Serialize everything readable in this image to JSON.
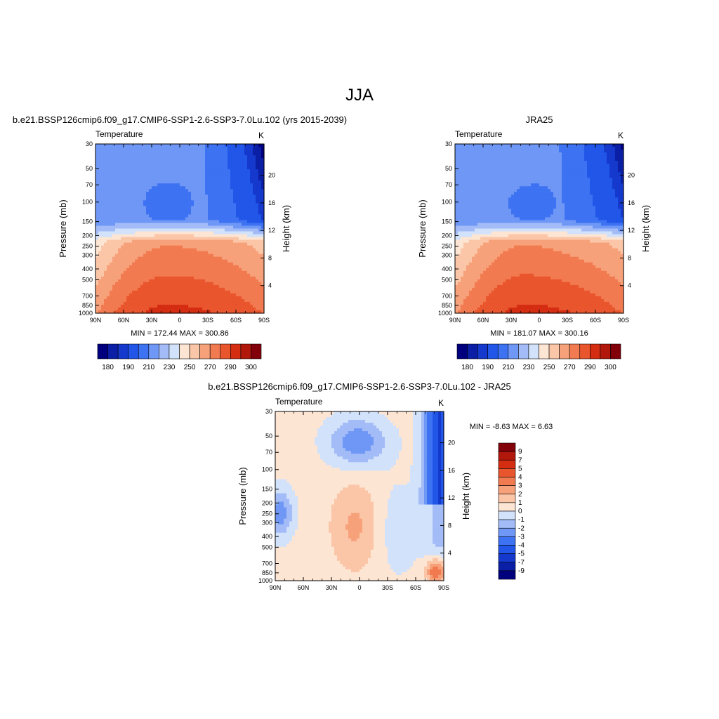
{
  "title": "JJA",
  "colors": {
    "ramp": [
      "#00007f",
      "#0b1fa6",
      "#1439cc",
      "#2156e8",
      "#3d72f2",
      "#6f97f5",
      "#a3bcf7",
      "#d2e2fb",
      "#fde5d3",
      "#fbc6a7",
      "#f7a17a",
      "#f27a50",
      "#e9552d",
      "#d42d12",
      "#b2170c",
      "#82000a"
    ]
  },
  "panels": [
    {
      "title": "b.e21.BSSP126cmip6.f09_g17.CMIP6-SSP1-2.6-SSP3-7.0Lu.102 (yrs 2015-2039)",
      "variable": "Temperature",
      "units": "K",
      "stats": "MIN = 172.44  MAX = 300.86"
    },
    {
      "title": "JRA25",
      "variable": "Temperature",
      "units": "K",
      "stats": "MIN = 181.07  MAX = 300.16"
    },
    {
      "title": "b.e21.BSSP126cmip6.f09_g17.CMIP6-SSP1-2.6-SSP3-7.0Lu.102 - JRA25",
      "variable": "Temperature",
      "units": "K",
      "stats": "MIN =  -8.63  MAX =   6.63"
    }
  ],
  "chart_data": [
    {
      "type": "heatmap",
      "title": "b.e21.BSSP126cmip6.f09_g17.CMIP6-SSP1-2.6-SSP3-7.0Lu.102 (yrs 2015-2039)",
      "xlabel": "",
      "ylabel": "Pressure (mb)",
      "y2label": "Height (km)",
      "x_ticks": [
        "90N",
        "60N",
        "30N",
        "0",
        "30S",
        "60S",
        "90S"
      ],
      "y_ticks": [
        "30",
        "50",
        "70",
        "100",
        "150",
        "200",
        "250",
        "300",
        "400",
        "500",
        "700",
        "850",
        "1000"
      ],
      "y_log": true,
      "y_range": [
        1000,
        30
      ],
      "y2_ticks": [
        "4",
        "8",
        "12",
        "16",
        "20"
      ],
      "min": 172.44,
      "max": 300.86,
      "colorbar": {
        "orientation": "horizontal",
        "labels": [
          "180",
          "190",
          "210",
          "230",
          "250",
          "270",
          "290",
          "300"
        ]
      }
    },
    {
      "type": "heatmap",
      "title": "JRA25",
      "xlabel": "",
      "ylabel": "Pressure (mb)",
      "y2label": "Height (km)",
      "x_ticks": [
        "90N",
        "60N",
        "30N",
        "0",
        "30S",
        "60S",
        "90S"
      ],
      "y_ticks": [
        "30",
        "50",
        "70",
        "100",
        "150",
        "200",
        "250",
        "300",
        "400",
        "500",
        "700",
        "850",
        "1000"
      ],
      "y_log": true,
      "y_range": [
        1000,
        30
      ],
      "y2_ticks": [
        "4",
        "8",
        "12",
        "16",
        "20"
      ],
      "min": 181.07,
      "max": 300.16,
      "colorbar": {
        "orientation": "horizontal",
        "labels": [
          "180",
          "190",
          "210",
          "230",
          "250",
          "270",
          "290",
          "300"
        ]
      }
    },
    {
      "type": "heatmap",
      "title": "b.e21.BSSP126cmip6.f09_g17.CMIP6-SSP1-2.6-SSP3-7.0Lu.102 - JRA25",
      "xlabel": "",
      "ylabel": "Pressure (mb)",
      "y2label": "Height (km)",
      "x_ticks": [
        "90N",
        "60N",
        "30N",
        "0",
        "30S",
        "60S",
        "90S"
      ],
      "y_ticks": [
        "30",
        "50",
        "70",
        "100",
        "150",
        "200",
        "250",
        "300",
        "400",
        "500",
        "700",
        "850",
        "1000"
      ],
      "y_log": true,
      "y_range": [
        1000,
        30
      ],
      "y2_ticks": [
        "4",
        "8",
        "12",
        "16",
        "20"
      ],
      "min": -8.63,
      "max": 6.63,
      "colorbar": {
        "orientation": "vertical",
        "labels": [
          "9",
          "7",
          "5",
          "4",
          "3",
          "2",
          "1",
          "0",
          "-1",
          "-2",
          "-3",
          "-4",
          "-5",
          "-7",
          "-9"
        ]
      }
    }
  ]
}
